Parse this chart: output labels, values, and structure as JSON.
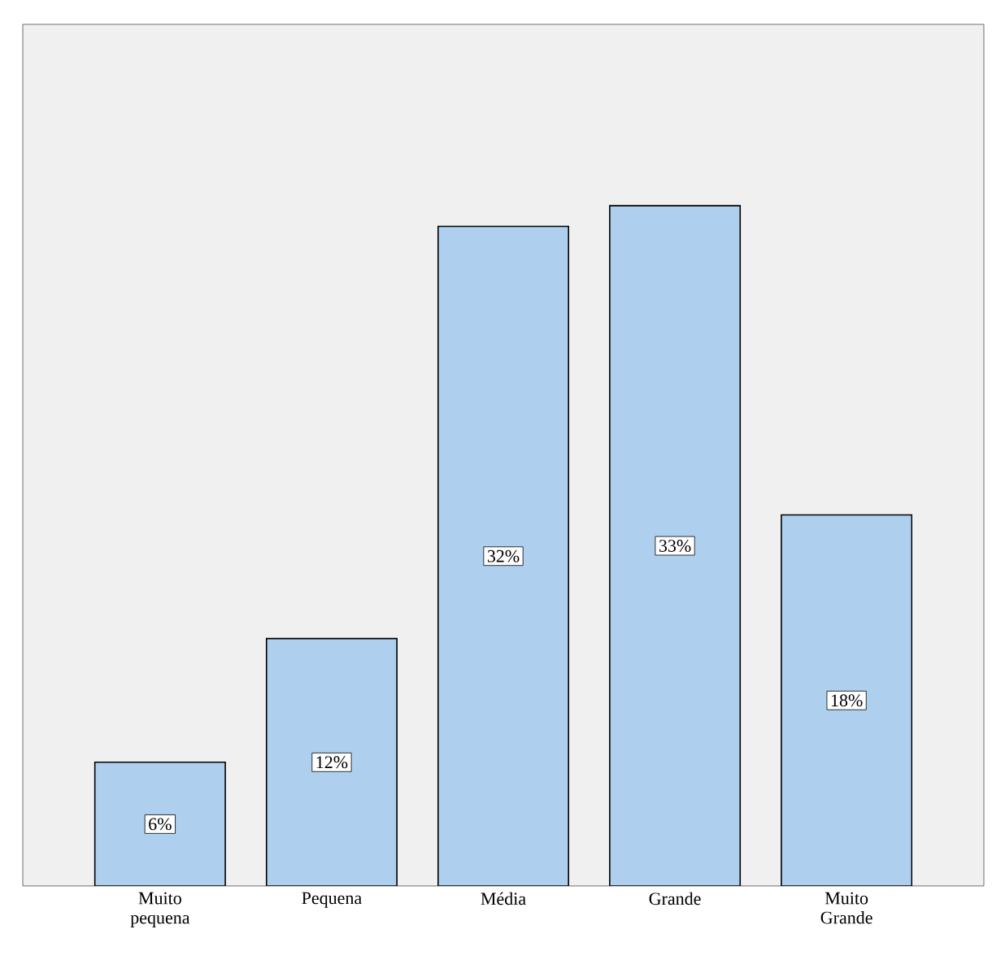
{
  "chart_data": {
    "type": "bar",
    "categories": [
      "Muito pequena",
      "Pequena",
      "Média",
      "Grande",
      "Muito Grande"
    ],
    "values": [
      6,
      12,
      32,
      33,
      18
    ],
    "value_labels": [
      "6%",
      "12%",
      "32%",
      "33%",
      "18%"
    ],
    "color": "#aed0ee",
    "ylim": [
      0,
      41.8
    ],
    "tick_labels": "x"
  }
}
